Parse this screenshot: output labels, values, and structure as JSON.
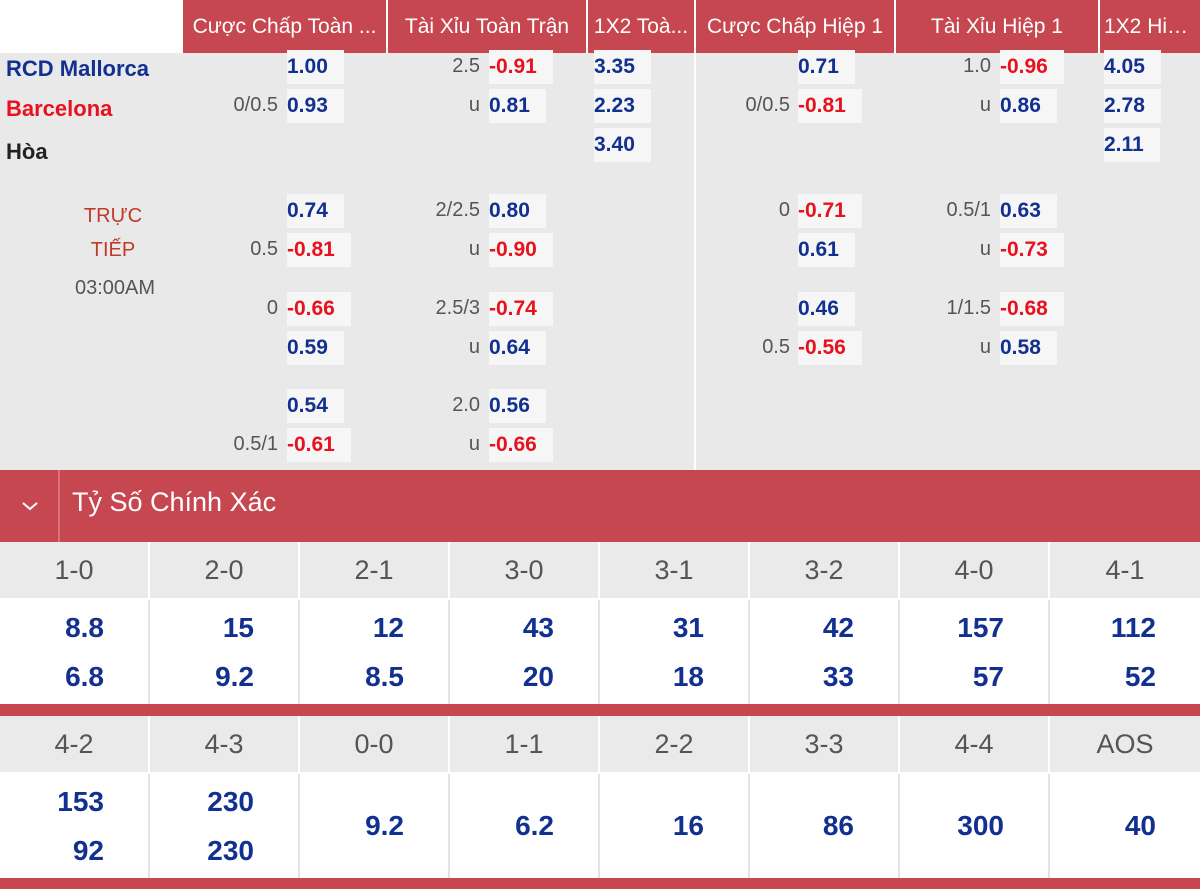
{
  "headers": [
    "Cược Chấp Toàn ...",
    "Tài Xỉu Toàn Trận",
    "1X2 Toà...",
    "Cược Chấp Hiệp 1",
    "Tài Xỉu Hiệp 1",
    "1X2 Hiệ..."
  ],
  "teams": {
    "home": "RCD Mallorca",
    "away": "Barcelona",
    "draw": "Hòa",
    "home_color": "#12308f",
    "away_color": "#e8121e",
    "draw_color": "#222222"
  },
  "match": {
    "status_line1": "TRỰC",
    "status_line2": "TIẾP",
    "kickoff": "03:00AM"
  },
  "main_market": {
    "ft_hdp": {
      "home_line": "",
      "home_odds": "1.00",
      "away_line": "0/0.5",
      "away_odds": "0.93"
    },
    "ft_ou": {
      "line": "2.5",
      "over_odds": "-0.91",
      "u_label": "u",
      "under_odds": "0.81"
    },
    "ft_1x2": {
      "home": "3.35",
      "away": "2.23",
      "draw": "3.40"
    },
    "h1_hdp": {
      "home_line": "",
      "home_odds": "0.71",
      "away_line": "0/0.5",
      "away_odds": "-0.81"
    },
    "h1_ou": {
      "line": "1.0",
      "over_odds": "-0.96",
      "u_label": "u",
      "under_odds": "0.86"
    },
    "h1_1x2": {
      "home": "4.05",
      "away": "2.78",
      "draw": "2.11"
    }
  },
  "alt_ft": [
    {
      "hdp_top_line": "",
      "hdp_top": "0.74",
      "hdp_bot_line": "0.5",
      "hdp_bot": "-0.81",
      "ou_line": "2/2.5",
      "ou_top": "0.80",
      "u": "u",
      "ou_bot": "-0.90"
    },
    {
      "hdp_top_line": "0",
      "hdp_top": "-0.66",
      "hdp_bot_line": "",
      "hdp_bot": "0.59",
      "ou_line": "2.5/3",
      "ou_top": "-0.74",
      "u": "u",
      "ou_bot": "0.64"
    },
    {
      "hdp_top_line": "",
      "hdp_top": "0.54",
      "hdp_bot_line": "0.5/1",
      "hdp_bot": "-0.61",
      "ou_line": "2.0",
      "ou_top": "0.56",
      "u": "u",
      "ou_bot": "-0.66"
    }
  ],
  "alt_h1": [
    {
      "hdp_top_line": "0",
      "hdp_top": "-0.71",
      "hdp_bot_line": "",
      "hdp_bot": "0.61",
      "ou_line": "0.5/1",
      "ou_top": "0.63",
      "u": "u",
      "ou_bot": "-0.73"
    },
    {
      "hdp_top_line": "",
      "hdp_top": "0.46",
      "hdp_bot_line": "0.5",
      "hdp_bot": "-0.56",
      "ou_line": "1/1.5",
      "ou_top": "-0.68",
      "u": "u",
      "ou_bot": "0.58"
    }
  ],
  "correct_score": {
    "title": "Tỷ Số Chính Xác",
    "collapse_icon": "chevron-down-icon",
    "row1": [
      {
        "score": "1-0",
        "top": "8.8",
        "bottom": "6.8"
      },
      {
        "score": "2-0",
        "top": "15",
        "bottom": "9.2"
      },
      {
        "score": "2-1",
        "top": "12",
        "bottom": "8.5"
      },
      {
        "score": "3-0",
        "top": "43",
        "bottom": "20"
      },
      {
        "score": "3-1",
        "top": "31",
        "bottom": "18"
      },
      {
        "score": "3-2",
        "top": "42",
        "bottom": "33"
      },
      {
        "score": "4-0",
        "top": "157",
        "bottom": "57"
      },
      {
        "score": "4-1",
        "top": "112",
        "bottom": "52"
      }
    ],
    "row2": [
      {
        "score": "4-2",
        "top": "153",
        "bottom": "92"
      },
      {
        "score": "4-3",
        "top": "230",
        "bottom": "230"
      },
      {
        "score": "0-0",
        "single": "9.2"
      },
      {
        "score": "1-1",
        "single": "6.2"
      },
      {
        "score": "2-2",
        "single": "16"
      },
      {
        "score": "3-3",
        "single": "86"
      },
      {
        "score": "4-4",
        "single": "300"
      },
      {
        "score": "AOS",
        "single": "40"
      }
    ]
  },
  "colors": {
    "accent": "#c64750",
    "positive": "#12308f",
    "negative": "#e8121e"
  }
}
